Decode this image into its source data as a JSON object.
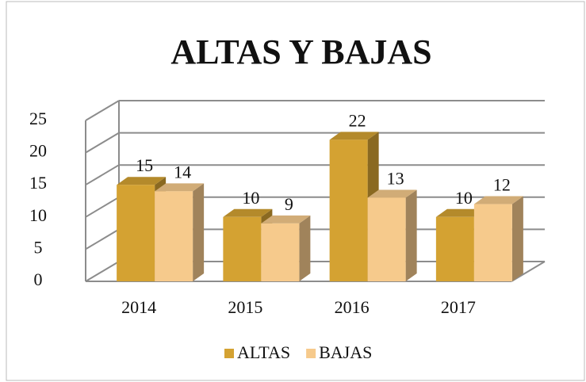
{
  "chart_data": {
    "type": "bar3d",
    "title": "ALTAS Y BAJAS",
    "categories": [
      "2014",
      "2015",
      "2016",
      "2017"
    ],
    "series": [
      {
        "name": "ALTAS",
        "color": "#d4a232",
        "values": [
          15,
          10,
          22,
          10
        ]
      },
      {
        "name": "BAJAS",
        "color": "#f6ca8c",
        "values": [
          14,
          9,
          13,
          12
        ]
      }
    ],
    "ylim": [
      0,
      25
    ],
    "yticks": [
      0,
      5,
      10,
      15,
      20,
      25
    ],
    "grid": true,
    "legend": "bottom"
  }
}
